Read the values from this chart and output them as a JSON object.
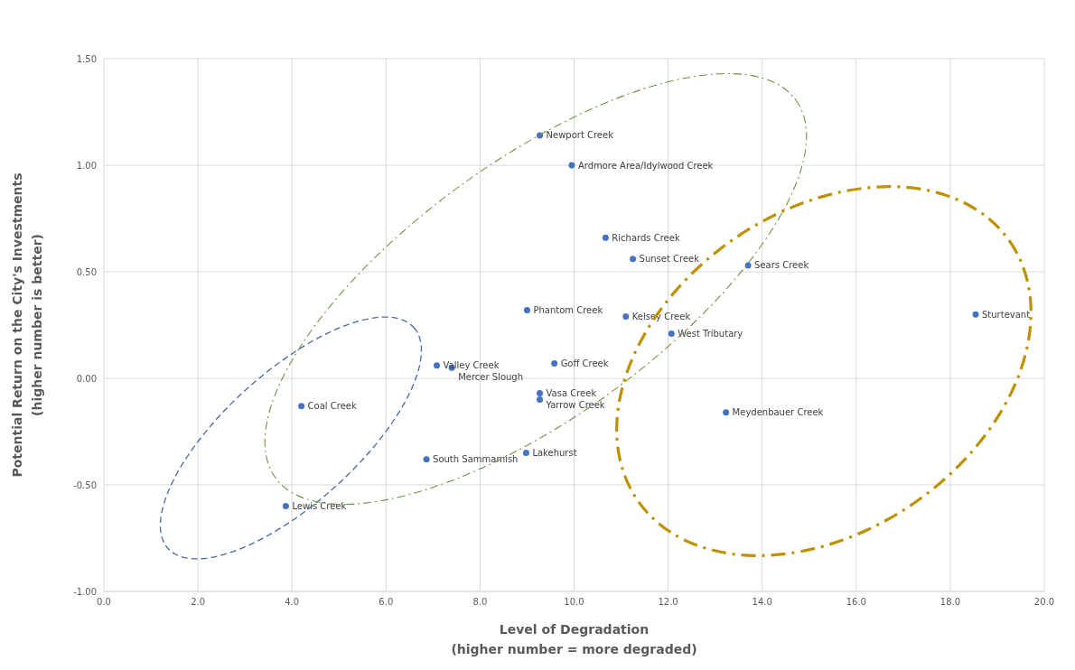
{
  "chart_data": {
    "type": "scatter",
    "xlabel": "Level of Degradation\n(higher number = more degraded)",
    "ylabel": "Potential Return on the City's Investments\n(higher number is better)",
    "xlim": [
      0,
      20
    ],
    "ylim": [
      -1,
      1.5
    ],
    "xticks": [
      {
        "value": 0,
        "label": "0.0"
      },
      {
        "value": 2,
        "label": "2.0"
      },
      {
        "value": 4,
        "label": "4.0"
      },
      {
        "value": 6,
        "label": "6.0"
      },
      {
        "value": 8,
        "label": "8.0"
      },
      {
        "value": 10,
        "label": "10.0"
      },
      {
        "value": 12,
        "label": "12.0"
      },
      {
        "value": 14,
        "label": "14.0"
      },
      {
        "value": 16,
        "label": "16.0"
      },
      {
        "value": 18,
        "label": "18.0"
      },
      {
        "value": 20,
        "label": "20.0"
      }
    ],
    "yticks": [
      {
        "value": -1,
        "label": "-1.00"
      },
      {
        "value": -0.5,
        "label": "-0.50"
      },
      {
        "value": 0,
        "label": "0.00"
      },
      {
        "value": 0.5,
        "label": "0.50"
      },
      {
        "value": 1,
        "label": "1.00"
      },
      {
        "value": 1.5,
        "label": "1.50"
      }
    ],
    "grid": true,
    "marker": "circle",
    "series": [
      {
        "color": "#4472c4",
        "x": [
          9.27,
          9.95,
          10.67,
          11.25,
          13.7,
          9.0,
          11.1,
          12.07,
          18.54,
          9.58,
          7.08,
          7.4,
          9.27,
          9.27,
          13.23,
          8.98,
          6.86,
          4.2,
          3.87
        ],
        "values": [
          1.14,
          1.0,
          0.66,
          0.56,
          0.53,
          0.32,
          0.29,
          0.21,
          0.3,
          0.07,
          0.06,
          0.05,
          -0.07,
          -0.1,
          -0.16,
          -0.35,
          -0.38,
          -0.13,
          -0.6
        ],
        "value_labels": [
          "Newport Creek",
          "Ardmore Area/Idylwood Creek",
          "Richards Creek",
          "Sunset Creek",
          "Sears Creek",
          "Phantom Creek",
          "Kelsey Creek",
          "West Tributary",
          "Sturtevant",
          "Goff Creek",
          "Valley Creek",
          "Mercer Slough",
          "Vasa Creek",
          "Yarrow Creek",
          "Meydenbauer Creek",
          "Lakehurst",
          "South Sammamish",
          "Coal Creek",
          "Lewis Creek"
        ]
      }
    ]
  }
}
